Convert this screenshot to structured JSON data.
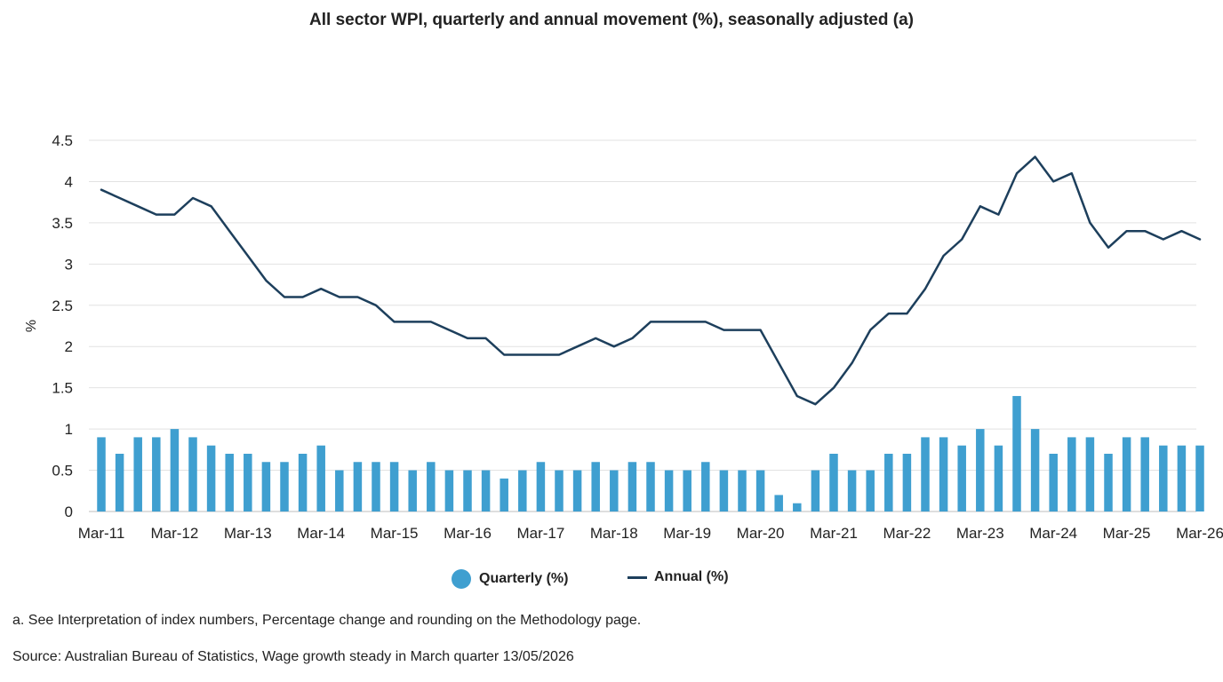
{
  "chart_data": {
    "type": "bar+line",
    "title": "All sector WPI, quarterly and annual movement (%), seasonally adjusted (a)",
    "ylabel": "%",
    "xlabel": "",
    "ylim": [
      0,
      4.5
    ],
    "yticks": [
      "0",
      "0.5",
      "1",
      "1.5",
      "2",
      "2.5",
      "3",
      "3.5",
      "4",
      "4.5"
    ],
    "xtick_labels": [
      "Mar-11",
      "Mar-12",
      "Mar-13",
      "Mar-14",
      "Mar-15",
      "Mar-16",
      "Mar-17",
      "Mar-18",
      "Mar-19",
      "Mar-20",
      "Mar-21",
      "Mar-22",
      "Mar-23",
      "Mar-24",
      "Mar-25",
      "Mar-26"
    ],
    "grid": true,
    "legend_placement": "bottom",
    "series": [
      {
        "name": "Quarterly (%)",
        "type": "bar",
        "color": "#3f9fd0",
        "values": [
          0.9,
          0.7,
          0.9,
          0.9,
          1.0,
          0.9,
          0.8,
          0.7,
          0.7,
          0.6,
          0.6,
          0.7,
          0.8,
          0.5,
          0.6,
          0.6,
          0.6,
          0.5,
          0.6,
          0.5,
          0.5,
          0.5,
          0.4,
          0.5,
          0.6,
          0.5,
          0.5,
          0.6,
          0.5,
          0.6,
          0.6,
          0.5,
          0.5,
          0.6,
          0.5,
          0.5,
          0.5,
          0.2,
          0.1,
          0.5,
          0.7,
          0.5,
          0.5,
          0.7,
          0.7,
          0.9,
          0.9,
          0.8,
          1.0,
          0.8,
          1.4,
          1.0,
          0.7,
          0.9,
          0.9,
          0.7,
          0.9,
          0.9,
          0.8,
          0.8,
          0.8
        ]
      },
      {
        "name": "Annual (%)",
        "type": "line",
        "color": "#1d3f5c",
        "values": [
          3.9,
          3.8,
          3.7,
          3.6,
          3.6,
          3.8,
          3.7,
          3.4,
          3.1,
          2.8,
          2.6,
          2.6,
          2.7,
          2.6,
          2.6,
          2.5,
          2.3,
          2.3,
          2.3,
          2.2,
          2.1,
          2.1,
          1.9,
          1.9,
          1.9,
          1.9,
          2.0,
          2.1,
          2.0,
          2.1,
          2.3,
          2.3,
          2.3,
          2.3,
          2.2,
          2.2,
          2.2,
          1.8,
          1.4,
          1.3,
          1.5,
          1.8,
          2.2,
          2.4,
          2.4,
          2.7,
          3.1,
          3.3,
          3.7,
          3.6,
          4.1,
          4.3,
          4.0,
          4.1,
          3.5,
          3.2,
          3.4,
          3.4,
          3.3,
          3.4,
          3.3
        ]
      }
    ]
  },
  "legend": {
    "quarterly_label": "Quarterly (%)",
    "annual_label": "Annual (%)"
  },
  "notes": {
    "footnote": "a. See Interpretation of index numbers, Percentage change and rounding on the Methodology page.",
    "source": "Source: Australian Bureau of Statistics, Wage growth steady in March quarter 13/05/2026"
  }
}
